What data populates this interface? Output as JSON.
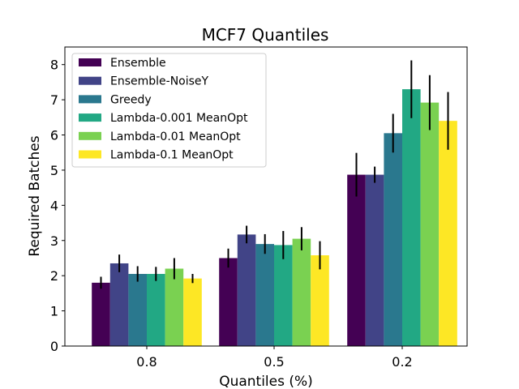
{
  "chart_data": {
    "type": "bar",
    "title": "MCF7 Quantiles",
    "xlabel": "Quantiles (%)",
    "ylabel": "Required Batches",
    "categories": [
      "0.8",
      "0.5",
      "0.2"
    ],
    "ylim": [
      0,
      8.5
    ],
    "yticks": [
      0,
      1,
      2,
      3,
      4,
      5,
      6,
      7,
      8
    ],
    "legend_position": "top-left",
    "series": [
      {
        "name": "Ensemble",
        "color": "#440154",
        "values": [
          1.8,
          2.5,
          4.87
        ],
        "errors": [
          0.17,
          0.27,
          0.62
        ]
      },
      {
        "name": "Ensemble-NoiseY",
        "color": "#414487",
        "values": [
          2.35,
          3.17,
          4.87
        ],
        "errors": [
          0.25,
          0.25,
          0.23
        ]
      },
      {
        "name": "Greedy",
        "color": "#2a788e",
        "values": [
          2.05,
          2.9,
          6.05
        ],
        "errors": [
          0.22,
          0.28,
          0.55
        ]
      },
      {
        "name": "Lambda-0.001 MeanOpt",
        "color": "#22a884",
        "values": [
          2.05,
          2.87,
          7.3
        ],
        "errors": [
          0.2,
          0.4,
          0.82
        ]
      },
      {
        "name": "Lambda-0.01 MeanOpt",
        "color": "#7ad151",
        "values": [
          2.2,
          3.05,
          6.92
        ],
        "errors": [
          0.3,
          0.33,
          0.78
        ]
      },
      {
        "name": "Lambda-0.1 MeanOpt",
        "color": "#fde725",
        "values": [
          1.92,
          2.58,
          6.4
        ],
        "errors": [
          0.13,
          0.4,
          0.82
        ]
      }
    ]
  }
}
